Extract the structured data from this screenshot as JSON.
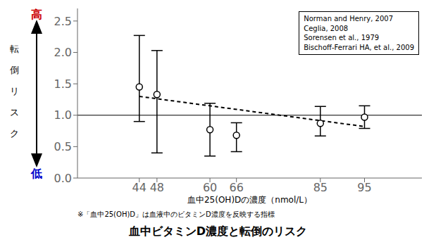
{
  "chart_data": {
    "type": "scatter",
    "title": "血中ビタミンD濃度と転倒のリスク",
    "x_label": "血中25(OH)Dの濃度（nmol/L）",
    "y_label": "転倒リスク",
    "x": [
      44,
      48,
      60,
      66,
      85,
      95
    ],
    "series": [
      {
        "type": "scatter",
        "marker": "circle",
        "color": "#000000",
        "values": [
          1.45,
          1.33,
          0.77,
          0.68,
          0.87,
          0.97
        ],
        "error_lower": [
          0.55,
          0.93,
          0.42,
          0.26,
          0.2,
          0.18
        ],
        "error_upper": [
          0.82,
          0.7,
          0.42,
          0.2,
          0.27,
          0.18
        ]
      },
      {
        "type": "line",
        "line_style": "dashed",
        "color": "#000000",
        "x": [
          44,
          95
        ],
        "values": [
          1.3,
          0.82
        ]
      }
    ],
    "hline": 1.0,
    "xlim": [
      30,
      108
    ],
    "xticks": [
      44,
      48,
      60,
      66,
      85,
      95
    ],
    "ylim": [
      0.0,
      2.7
    ],
    "yticks": [
      {
        "value": 0,
        "label": "0.0"
      },
      0.5,
      {
        "value": 1,
        "label": "1.0"
      },
      1.5,
      {
        "value": 2,
        "label": "2.0"
      },
      2.5
    ],
    "grid": false,
    "annotations": [
      {
        "text": "高",
        "color": "#cc0000"
      },
      {
        "text": "低",
        "color": "#0000cc"
      },
      {
        "text": "※「血中25(OH)D」は血液中のビタミンD濃度を反映する指標"
      },
      {
        "text": "Norman and Henry, 2007"
      },
      {
        "text": "Ceglia, 2008"
      },
      {
        "text": "Sorensen et al., 1979"
      },
      {
        "text": "Bischoff-Ferrari HA, et al., 2009"
      }
    ]
  }
}
